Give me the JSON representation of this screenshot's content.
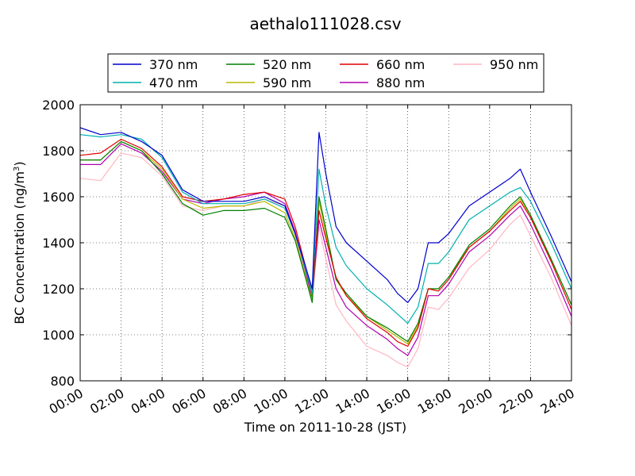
{
  "chart_data": {
    "type": "line",
    "title": "aethalo111028.csv",
    "xlabel": "Time on 2011-10-28 (JST)",
    "ylabel_main": "BC Concentration (ng/m",
    "ylabel_sup": "3",
    "ylabel_close": ")",
    "xlim": [
      "00:00",
      "24:00"
    ],
    "ylim": [
      800,
      2000
    ],
    "x_ticks": [
      "00:00",
      "02:00",
      "04:00",
      "06:00",
      "08:00",
      "10:00",
      "12:00",
      "14:00",
      "16:00",
      "18:00",
      "20:00",
      "22:00",
      "24:00"
    ],
    "y_ticks": [
      "800",
      "1000",
      "1200",
      "1400",
      "1600",
      "1800",
      "2000"
    ],
    "grid": true,
    "legend_position": "top",
    "times": [
      "00:00",
      "01:00",
      "02:00",
      "03:00",
      "04:00",
      "05:00",
      "06:00",
      "07:00",
      "08:00",
      "09:00",
      "10:00",
      "10:30",
      "11:00",
      "11:20",
      "11:40",
      "12:00",
      "12:30",
      "13:00",
      "14:00",
      "15:00",
      "15:30",
      "16:00",
      "16:30",
      "17:00",
      "17:30",
      "18:00",
      "19:00",
      "20:00",
      "21:00",
      "21:30",
      "22:00",
      "23:00",
      "24:00"
    ],
    "series": [
      {
        "name": "370 nm",
        "color": "#0000cc",
        "values": [
          1900,
          1870,
          1880,
          1840,
          1780,
          1630,
          1580,
          1580,
          1580,
          1600,
          1560,
          1440,
          1300,
          1200,
          1880,
          1700,
          1470,
          1400,
          1320,
          1240,
          1180,
          1140,
          1200,
          1400,
          1400,
          1440,
          1560,
          1620,
          1680,
          1720,
          1620,
          1430,
          1230
        ]
      },
      {
        "name": "470 nm",
        "color": "#00b0b0",
        "values": [
          1870,
          1860,
          1870,
          1850,
          1770,
          1620,
          1570,
          1570,
          1570,
          1590,
          1550,
          1440,
          1290,
          1180,
          1720,
          1560,
          1380,
          1300,
          1200,
          1130,
          1090,
          1050,
          1120,
          1310,
          1310,
          1360,
          1500,
          1560,
          1620,
          1640,
          1580,
          1400,
          1200
        ]
      },
      {
        "name": "520 nm",
        "color": "#008000",
        "values": [
          1760,
          1760,
          1840,
          1800,
          1700,
          1570,
          1520,
          1540,
          1540,
          1550,
          1510,
          1410,
          1250,
          1140,
          1600,
          1460,
          1240,
          1180,
          1080,
          1030,
          1000,
          970,
          1050,
          1200,
          1200,
          1250,
          1390,
          1460,
          1560,
          1600,
          1520,
          1330,
          1130
        ]
      },
      {
        "name": "590 nm",
        "color": "#b8b800",
        "values": [
          1760,
          1760,
          1840,
          1800,
          1720,
          1590,
          1550,
          1560,
          1560,
          1580,
          1530,
          1420,
          1260,
          1150,
          1580,
          1440,
          1240,
          1170,
          1080,
          1020,
          990,
          960,
          1040,
          1200,
          1200,
          1250,
          1380,
          1450,
          1550,
          1590,
          1520,
          1330,
          1130
        ]
      },
      {
        "name": "660 nm",
        "color": "#e00000",
        "values": [
          1780,
          1790,
          1850,
          1810,
          1730,
          1600,
          1580,
          1590,
          1610,
          1620,
          1590,
          1470,
          1300,
          1180,
          1540,
          1420,
          1250,
          1170,
          1070,
          1010,
          970,
          950,
          1030,
          1200,
          1190,
          1240,
          1380,
          1450,
          1540,
          1580,
          1510,
          1320,
          1110
        ]
      },
      {
        "name": "880 nm",
        "color": "#b000b0",
        "values": [
          1740,
          1740,
          1830,
          1790,
          1710,
          1590,
          1570,
          1590,
          1600,
          1620,
          1570,
          1450,
          1280,
          1160,
          1500,
          1380,
          1200,
          1120,
          1040,
          980,
          940,
          910,
          990,
          1170,
          1170,
          1220,
          1360,
          1430,
          1520,
          1560,
          1480,
          1290,
          1080
        ]
      },
      {
        "name": "950 nm",
        "color": "#ffb6c1",
        "values": [
          1680,
          1670,
          1790,
          1770,
          1690,
          1560,
          1540,
          1560,
          1560,
          1590,
          1560,
          1440,
          1260,
          1150,
          1470,
          1330,
          1130,
          1060,
          950,
          910,
          880,
          860,
          940,
          1120,
          1110,
          1160,
          1290,
          1370,
          1480,
          1520,
          1430,
          1250,
          1040
        ]
      }
    ]
  }
}
